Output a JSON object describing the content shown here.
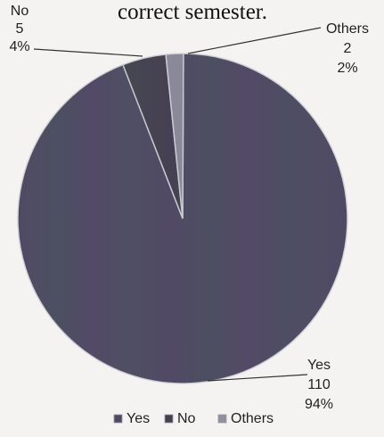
{
  "chart_data": {
    "type": "pie",
    "title": "correct semester.",
    "slices": [
      {
        "category": "Yes",
        "value": 110,
        "percent": "94%",
        "color": "#4f4a63"
      },
      {
        "category": "No",
        "value": 5,
        "percent": "4%",
        "color": "#44404f"
      },
      {
        "category": "Others",
        "value": 2,
        "percent": "2%",
        "color": "#8f8f9e"
      }
    ],
    "legend_position": "bottom"
  }
}
